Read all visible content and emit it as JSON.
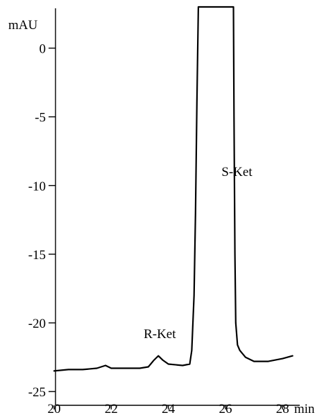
{
  "chart_data": {
    "type": "line",
    "title": "",
    "xlabel": "min",
    "ylabel": "mAU",
    "xlim": [
      20,
      28.6
    ],
    "ylim": [
      -26,
      3
    ],
    "xticks": [
      20,
      22,
      24,
      26,
      28
    ],
    "yticks": [
      0,
      -5,
      -10,
      -15,
      -20,
      -25
    ],
    "grid": false,
    "annotations": [
      {
        "text": "R-Ket",
        "x": 23.7,
        "y": -21.1
      },
      {
        "text": "S-Ket",
        "x": 26.4,
        "y": -9.3
      }
    ],
    "series": [
      {
        "values": [
          [
            20.0,
            -23.5
          ],
          [
            20.5,
            -23.4
          ],
          [
            21.0,
            -23.4
          ],
          [
            21.5,
            -23.3
          ],
          [
            21.8,
            -23.1
          ],
          [
            22.0,
            -23.3
          ],
          [
            22.5,
            -23.3
          ],
          [
            23.0,
            -23.3
          ],
          [
            23.3,
            -23.2
          ],
          [
            23.5,
            -22.7
          ],
          [
            23.65,
            -22.4
          ],
          [
            23.8,
            -22.7
          ],
          [
            24.0,
            -23.0
          ],
          [
            24.5,
            -23.1
          ],
          [
            24.75,
            -23.0
          ],
          [
            24.82,
            -22.0
          ],
          [
            24.9,
            -18.0
          ],
          [
            24.95,
            -12.0
          ],
          [
            25.0,
            -4.0
          ],
          [
            25.05,
            3.0
          ],
          [
            26.28,
            3.0
          ],
          [
            26.3,
            -5.0
          ],
          [
            26.33,
            -15.0
          ],
          [
            26.36,
            -20.0
          ],
          [
            26.42,
            -21.6
          ],
          [
            26.5,
            -22.0
          ],
          [
            26.7,
            -22.5
          ],
          [
            27.0,
            -22.8
          ],
          [
            27.5,
            -22.8
          ],
          [
            28.0,
            -22.6
          ],
          [
            28.35,
            -22.4
          ]
        ]
      }
    ]
  }
}
